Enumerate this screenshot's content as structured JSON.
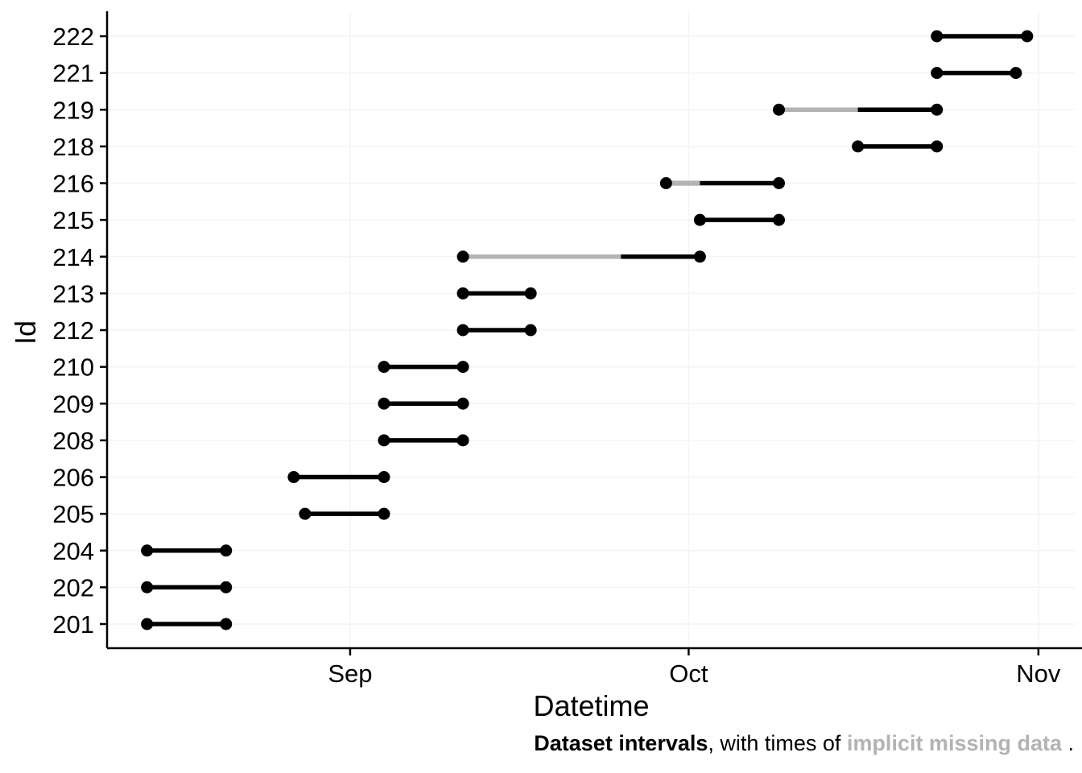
{
  "chart_data": {
    "type": "interval",
    "title": "",
    "xlabel": "Datetime",
    "ylabel": "Id",
    "x_domain": [
      "2019-08-10T11:00:00",
      "2019-11-04T07:00:00"
    ],
    "x_ticks": [
      {
        "label": "Sep",
        "date": "2019-09-01"
      },
      {
        "label": "Oct",
        "date": "2019-10-01"
      },
      {
        "label": "Nov",
        "date": "2019-11-01"
      }
    ],
    "grid": "faint",
    "legend": "none",
    "rows": [
      {
        "id": "222",
        "start": "2019-10-23",
        "end": "2019-10-31",
        "missing": null
      },
      {
        "id": "221",
        "start": "2019-10-23",
        "end": "2019-10-30",
        "missing": null
      },
      {
        "id": "219",
        "start": "2019-10-09",
        "end": "2019-10-23",
        "missing": [
          "2019-10-09",
          "2019-10-16"
        ]
      },
      {
        "id": "218",
        "start": "2019-10-16",
        "end": "2019-10-23",
        "missing": null
      },
      {
        "id": "216",
        "start": "2019-09-29",
        "end": "2019-10-09",
        "missing": [
          "2019-09-29",
          "2019-10-02"
        ]
      },
      {
        "id": "215",
        "start": "2019-10-02",
        "end": "2019-10-09",
        "missing": null
      },
      {
        "id": "214",
        "start": "2019-09-11",
        "end": "2019-10-02",
        "missing": [
          "2019-09-11",
          "2019-09-25"
        ]
      },
      {
        "id": "213",
        "start": "2019-09-11",
        "end": "2019-09-17",
        "missing": null
      },
      {
        "id": "212",
        "start": "2019-09-11",
        "end": "2019-09-17",
        "missing": null
      },
      {
        "id": "210",
        "start": "2019-09-04",
        "end": "2019-09-11",
        "missing": null
      },
      {
        "id": "209",
        "start": "2019-09-04",
        "end": "2019-09-11",
        "missing": null
      },
      {
        "id": "208",
        "start": "2019-09-04",
        "end": "2019-09-11",
        "missing": null
      },
      {
        "id": "206",
        "start": "2019-08-27",
        "end": "2019-09-04",
        "missing": null
      },
      {
        "id": "205",
        "start": "2019-08-28",
        "end": "2019-09-04",
        "missing": null
      },
      {
        "id": "204",
        "start": "2019-08-14",
        "end": "2019-08-21",
        "missing": null
      },
      {
        "id": "202",
        "start": "2019-08-14",
        "end": "2019-08-21",
        "missing": null
      },
      {
        "id": "201",
        "start": "2019-08-14",
        "end": "2019-08-21",
        "missing": null
      }
    ],
    "colors": {
      "interval": "#000000",
      "missing": "#b3b3b3",
      "grid": "#f4f4f4",
      "axis": "#000000"
    }
  },
  "caption": {
    "part1": "Dataset intervals",
    "part2": ", with times of ",
    "part3": "implicit missing data",
    "part4": " ."
  }
}
